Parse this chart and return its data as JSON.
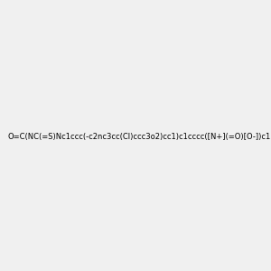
{
  "smiles": "O=C(NC(=S)Nc1ccc(-c2nc3cc(Cl)ccc3o2)cc1)c1cccc([N+](=O)[O-])c1",
  "image_size": 300,
  "background_color": "#f0f0f0"
}
